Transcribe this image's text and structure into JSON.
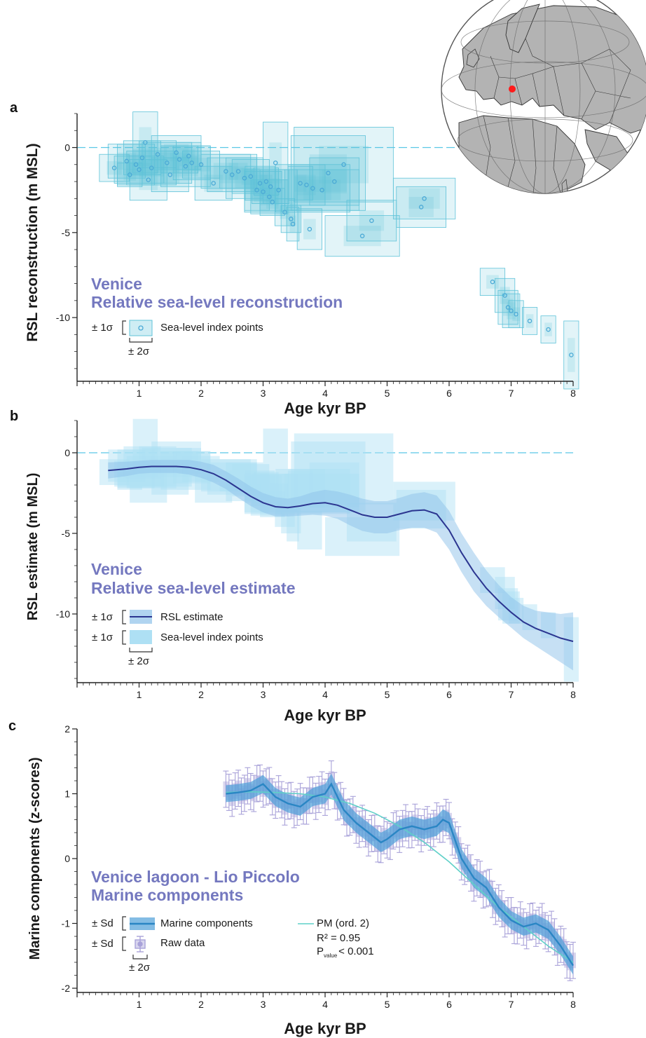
{
  "chart_data": [
    {
      "type": "scatter",
      "panel_label": "a",
      "title_lines": [
        "Venice",
        "Relative sea-level reconstruction"
      ],
      "xlabel": "Age kyr BP",
      "ylabel": "RSL reconstruction (m MSL)",
      "xlim": [
        0,
        8
      ],
      "ylim": [
        -13.5,
        2
      ],
      "x_ticks": [
        1,
        2,
        3,
        4,
        5,
        6,
        7,
        8
      ],
      "y_ticks": [
        0,
        -5,
        -10
      ],
      "reference_line_y": 0,
      "legend": {
        "sigma1": "± 1σ",
        "sigma2": "± 2σ",
        "points_label": "Sea-level index points"
      },
      "colors": {
        "box": "#5fc3d9",
        "point": "#4aa9d6",
        "reference": "#5ac8e6",
        "title": "#7478bf"
      },
      "points": [
        {
          "x": 0.6,
          "y": -1.2,
          "ex": 0.12,
          "ey": 0.4
        },
        {
          "x": 0.8,
          "y": -0.8,
          "ex": 0.15,
          "ey": 0.5
        },
        {
          "x": 0.85,
          "y": -1.6,
          "ex": 0.1,
          "ey": 0.35
        },
        {
          "x": 0.95,
          "y": -1.0,
          "ex": 0.15,
          "ey": 0.6
        },
        {
          "x": 1.0,
          "y": -1.3,
          "ex": 0.2,
          "ey": 0.4
        },
        {
          "x": 1.05,
          "y": -0.6,
          "ex": 0.15,
          "ey": 0.5
        },
        {
          "x": 1.1,
          "y": 0.3,
          "ex": 0.1,
          "ey": 0.9
        },
        {
          "x": 1.15,
          "y": -1.9,
          "ex": 0.15,
          "ey": 0.6
        },
        {
          "x": 1.2,
          "y": -1.2,
          "ex": 0.2,
          "ey": 0.5
        },
        {
          "x": 1.3,
          "y": -0.4,
          "ex": 0.15,
          "ey": 0.4
        },
        {
          "x": 1.45,
          "y": -0.9,
          "ex": 0.2,
          "ey": 0.6
        },
        {
          "x": 1.5,
          "y": -1.6,
          "ex": 0.15,
          "ey": 0.5
        },
        {
          "x": 1.6,
          "y": -0.3,
          "ex": 0.2,
          "ey": 0.5
        },
        {
          "x": 1.65,
          "y": -0.7,
          "ex": 0.15,
          "ey": 0.4
        },
        {
          "x": 1.75,
          "y": -1.1,
          "ex": 0.2,
          "ey": 0.6
        },
        {
          "x": 1.8,
          "y": -0.5,
          "ex": 0.1,
          "ey": 0.4
        },
        {
          "x": 1.85,
          "y": -0.9,
          "ex": 0.15,
          "ey": 0.5
        },
        {
          "x": 2.0,
          "y": -1.0,
          "ex": 0.15,
          "ey": 0.4
        },
        {
          "x": 2.2,
          "y": -2.1,
          "ex": 0.15,
          "ey": 0.5
        },
        {
          "x": 2.4,
          "y": -1.4,
          "ex": 0.2,
          "ey": 0.5
        },
        {
          "x": 2.5,
          "y": -1.6,
          "ex": 0.2,
          "ey": 0.5
        },
        {
          "x": 2.6,
          "y": -1.4,
          "ex": 0.15,
          "ey": 0.5
        },
        {
          "x": 2.7,
          "y": -1.8,
          "ex": 0.15,
          "ey": 0.6
        },
        {
          "x": 2.8,
          "y": -1.7,
          "ex": 0.15,
          "ey": 0.5
        },
        {
          "x": 2.9,
          "y": -2.5,
          "ex": 0.1,
          "ey": 0.6
        },
        {
          "x": 2.95,
          "y": -2.1,
          "ex": 0.12,
          "ey": 0.5
        },
        {
          "x": 3.0,
          "y": -2.6,
          "ex": 0.15,
          "ey": 0.6
        },
        {
          "x": 3.05,
          "y": -2.0,
          "ex": 0.1,
          "ey": 0.4
        },
        {
          "x": 3.1,
          "y": -2.9,
          "ex": 0.15,
          "ey": 0.5
        },
        {
          "x": 3.12,
          "y": -2.3,
          "ex": 0.15,
          "ey": 0.5
        },
        {
          "x": 3.15,
          "y": -3.2,
          "ex": 0.1,
          "ey": 0.4
        },
        {
          "x": 3.2,
          "y": -0.9,
          "ex": 0.1,
          "ey": 1.2
        },
        {
          "x": 3.25,
          "y": -2.5,
          "ex": 0.15,
          "ey": 0.6
        },
        {
          "x": 3.35,
          "y": -3.8,
          "ex": 0.08,
          "ey": 0.4
        },
        {
          "x": 3.45,
          "y": -4.2,
          "ex": 0.08,
          "ey": 0.4
        },
        {
          "x": 3.48,
          "y": -4.5,
          "ex": 0.05,
          "ey": 0.5
        },
        {
          "x": 3.6,
          "y": -2.1,
          "ex": 0.1,
          "ey": 0.5
        },
        {
          "x": 3.7,
          "y": -2.2,
          "ex": 0.15,
          "ey": 0.6
        },
        {
          "x": 3.75,
          "y": -4.8,
          "ex": 0.1,
          "ey": 0.6
        },
        {
          "x": 3.8,
          "y": -2.4,
          "ex": 0.3,
          "ey": 0.7
        },
        {
          "x": 3.95,
          "y": -2.5,
          "ex": 0.3,
          "ey": 0.6
        },
        {
          "x": 4.05,
          "y": -1.5,
          "ex": 0.3,
          "ey": 1.1
        },
        {
          "x": 4.15,
          "y": -2.0,
          "ex": 0.2,
          "ey": 0.7
        },
        {
          "x": 4.3,
          "y": -1.0,
          "ex": 0.4,
          "ey": 1.1
        },
        {
          "x": 4.6,
          "y": -5.2,
          "ex": 0.3,
          "ey": 0.6
        },
        {
          "x": 4.75,
          "y": -4.3,
          "ex": 0.2,
          "ey": 0.6
        },
        {
          "x": 5.55,
          "y": -3.5,
          "ex": 0.2,
          "ey": 0.6
        },
        {
          "x": 5.6,
          "y": -3.0,
          "ex": 0.25,
          "ey": 0.6
        },
        {
          "x": 6.7,
          "y": -7.9,
          "ex": 0.1,
          "ey": 0.4
        },
        {
          "x": 6.9,
          "y": -8.7,
          "ex": 0.08,
          "ey": 0.5
        },
        {
          "x": 6.95,
          "y": -9.4,
          "ex": 0.08,
          "ey": 0.5
        },
        {
          "x": 7.0,
          "y": -9.6,
          "ex": 0.07,
          "ey": 0.5
        },
        {
          "x": 7.08,
          "y": -9.8,
          "ex": 0.06,
          "ey": 0.4
        },
        {
          "x": 7.3,
          "y": -10.2,
          "ex": 0.06,
          "ey": 0.4
        },
        {
          "x": 7.6,
          "y": -10.7,
          "ex": 0.06,
          "ey": 0.4
        },
        {
          "x": 7.97,
          "y": -12.2,
          "ex": 0.06,
          "ey": 1.0
        }
      ]
    },
    {
      "type": "line",
      "panel_label": "b",
      "title_lines": [
        "Venice",
        "Relative sea-level estimate"
      ],
      "xlabel": "Age kyr BP",
      "ylabel": "RSL estimate (m MSL)",
      "xlim": [
        0,
        8
      ],
      "ylim": [
        -14,
        2
      ],
      "x_ticks": [
        1,
        2,
        3,
        4,
        5,
        6,
        7,
        8
      ],
      "y_ticks": [
        0,
        -5,
        -10
      ],
      "reference_line_y": 0,
      "legend": {
        "sigma1a": "± 1σ",
        "estimate_label": "RSL estimate",
        "sigma1b": "± 1σ",
        "points_label": "Sea-level index points",
        "sigma2": "± 2σ"
      },
      "colors": {
        "line": "#2b3590",
        "band": "#8ec2ea",
        "boxes": "#aee0f4",
        "reference": "#5ac8e6",
        "title": "#7478bf"
      },
      "series": [
        {
          "name": "RSL estimate",
          "x": [
            0.5,
            0.8,
            1.0,
            1.2,
            1.4,
            1.6,
            1.8,
            2.0,
            2.2,
            2.4,
            2.6,
            2.8,
            3.0,
            3.2,
            3.4,
            3.6,
            3.8,
            4.0,
            4.2,
            4.4,
            4.6,
            4.8,
            5.0,
            5.2,
            5.4,
            5.6,
            5.8,
            6.0,
            6.2,
            6.4,
            6.6,
            6.8,
            7.0,
            7.2,
            7.4,
            7.6,
            7.8,
            8.0
          ],
          "y": [
            -1.1,
            -1.0,
            -0.9,
            -0.85,
            -0.85,
            -0.85,
            -0.9,
            -1.05,
            -1.3,
            -1.7,
            -2.2,
            -2.7,
            -3.1,
            -3.35,
            -3.4,
            -3.3,
            -3.15,
            -3.1,
            -3.25,
            -3.55,
            -3.85,
            -4.0,
            -4.0,
            -3.8,
            -3.6,
            -3.55,
            -3.8,
            -4.8,
            -6.2,
            -7.4,
            -8.4,
            -9.2,
            -9.9,
            -10.5,
            -10.9,
            -11.2,
            -11.5,
            -11.7
          ],
          "err": [
            0.5,
            0.45,
            0.4,
            0.4,
            0.4,
            0.4,
            0.45,
            0.5,
            0.55,
            0.55,
            0.6,
            0.6,
            0.6,
            0.6,
            0.55,
            0.6,
            0.7,
            0.8,
            0.85,
            0.95,
            1.0,
            1.0,
            1.0,
            1.0,
            1.05,
            1.1,
            1.15,
            1.2,
            1.2,
            1.2,
            1.1,
            1.0,
            0.95,
            1.0,
            1.1,
            1.3,
            1.5,
            1.8
          ]
        }
      ]
    },
    {
      "type": "line",
      "panel_label": "c",
      "title_lines": [
        "Venice lagoon - Lio Piccolo",
        "Marine components"
      ],
      "xlabel": "Age kyr BP",
      "ylabel": "Marine components (z-scores)",
      "xlim": [
        0,
        8
      ],
      "ylim": [
        -2,
        2
      ],
      "x_ticks": [
        1,
        2,
        3,
        4,
        5,
        6,
        7,
        8
      ],
      "y_ticks": [
        2,
        1,
        0,
        -1,
        -2
      ],
      "legend": {
        "sd1": "± Sd",
        "marine_label": "Marine components",
        "sd2": "± Sd",
        "raw_label": "Raw data",
        "sigma2": "± 2σ",
        "fit_label": "PM (ord. 2)",
        "r2": "R² = 0.95",
        "p_prefix": "P",
        "p_sub": "value",
        "p_rest": "< 0.001"
      },
      "colors": {
        "line": "#2a86c4",
        "band": "#4f9fd9",
        "raw": "#a9a2d9",
        "fit": "#5fd0c8",
        "title": "#7478bf"
      },
      "series": [
        {
          "name": "Marine components",
          "x": [
            2.4,
            2.6,
            2.8,
            3.0,
            3.2,
            3.4,
            3.6,
            3.8,
            4.0,
            4.1,
            4.3,
            4.5,
            4.7,
            4.9,
            5.0,
            5.2,
            5.4,
            5.6,
            5.8,
            5.9,
            6.0,
            6.2,
            6.4,
            6.6,
            6.8,
            7.0,
            7.2,
            7.4,
            7.6,
            7.8,
            8.0
          ],
          "y": [
            1.0,
            1.02,
            1.05,
            1.15,
            0.95,
            0.85,
            0.8,
            0.95,
            1.0,
            1.15,
            0.75,
            0.55,
            0.4,
            0.25,
            0.3,
            0.45,
            0.5,
            0.45,
            0.5,
            0.6,
            0.55,
            0.0,
            -0.3,
            -0.45,
            -0.75,
            -0.95,
            -1.05,
            -1.0,
            -1.1,
            -1.35,
            -1.65
          ],
          "err": [
            0.13,
            0.13,
            0.13,
            0.14,
            0.14,
            0.14,
            0.14,
            0.14,
            0.15,
            0.16,
            0.16,
            0.15,
            0.15,
            0.15,
            0.15,
            0.15,
            0.15,
            0.15,
            0.15,
            0.16,
            0.16,
            0.15,
            0.15,
            0.15,
            0.15,
            0.14,
            0.14,
            0.14,
            0.14,
            0.14,
            0.14
          ]
        },
        {
          "name": "PM (ord. 2)",
          "x": [
            2.4,
            2.8,
            3.2,
            3.6,
            4.0,
            4.4,
            4.8,
            5.2,
            5.6,
            6.0,
            6.4,
            6.8,
            7.2,
            7.6,
            8.0
          ],
          "y": [
            1.02,
            1.03,
            1.02,
            1.0,
            0.95,
            0.85,
            0.7,
            0.5,
            0.25,
            -0.05,
            -0.4,
            -0.75,
            -1.05,
            -1.35,
            -1.6
          ]
        }
      ]
    }
  ]
}
